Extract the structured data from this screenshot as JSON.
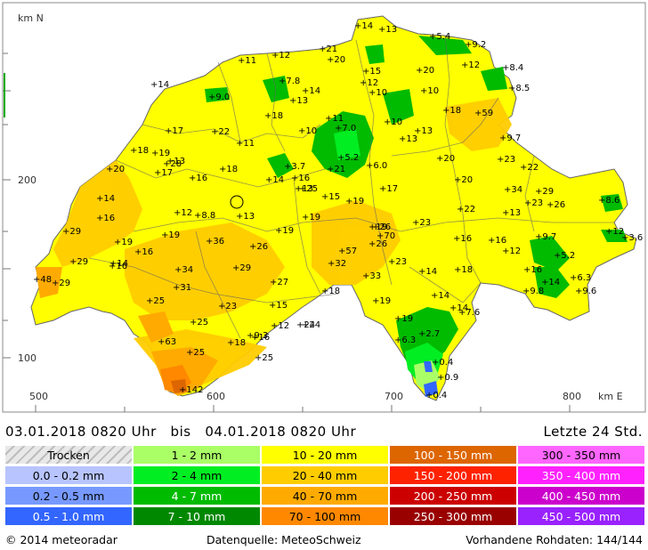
{
  "map": {
    "y_axis_title": "km N",
    "x_axis_title": "km E",
    "y_ticks": [
      "200",
      "100"
    ],
    "x_ticks": [
      "500",
      "600",
      "700",
      "800"
    ],
    "stations": [
      {
        "label": "14"
      },
      {
        "label": "13"
      },
      {
        "label": "5.4"
      },
      {
        "label": "9.2"
      },
      {
        "label": "21"
      },
      {
        "label": "20"
      },
      {
        "label": "12"
      },
      {
        "label": "11"
      },
      {
        "label": "8.4"
      },
      {
        "label": "12"
      },
      {
        "label": "15"
      },
      {
        "label": "20"
      },
      {
        "label": "7.8"
      },
      {
        "label": "14"
      },
      {
        "label": "12"
      },
      {
        "label": "14"
      },
      {
        "label": "8.5"
      },
      {
        "label": "9.0"
      },
      {
        "label": "13"
      },
      {
        "label": "10"
      },
      {
        "label": "10"
      },
      {
        "label": "18"
      },
      {
        "label": "59"
      },
      {
        "label": "18"
      },
      {
        "label": "11"
      },
      {
        "label": "10"
      },
      {
        "label": "17"
      },
      {
        "label": "22"
      },
      {
        "label": "10"
      },
      {
        "label": "7.0"
      },
      {
        "label": "13"
      },
      {
        "label": "13"
      },
      {
        "label": "9.7"
      },
      {
        "label": "18"
      },
      {
        "label": "11"
      },
      {
        "label": "19"
      },
      {
        "label": "13"
      },
      {
        "label": "28"
      },
      {
        "label": "5.2"
      },
      {
        "label": "6.0"
      },
      {
        "label": "20"
      },
      {
        "label": "22"
      },
      {
        "label": "17"
      },
      {
        "label": "20"
      },
      {
        "label": "18"
      },
      {
        "label": "3.7"
      },
      {
        "label": "21"
      },
      {
        "label": "23"
      },
      {
        "label": "14"
      },
      {
        "label": "16"
      },
      {
        "label": "16"
      },
      {
        "label": "13"
      },
      {
        "label": "25"
      },
      {
        "label": "17"
      },
      {
        "label": "20"
      },
      {
        "label": "34"
      },
      {
        "label": "29"
      },
      {
        "label": "14"
      },
      {
        "label": "15"
      },
      {
        "label": "19"
      },
      {
        "label": "23"
      },
      {
        "label": "26"
      },
      {
        "label": "8.6"
      },
      {
        "label": "12"
      },
      {
        "label": "8.8"
      },
      {
        "label": "13"
      },
      {
        "label": "19"
      },
      {
        "label": "22"
      },
      {
        "label": "13"
      },
      {
        "label": "16"
      },
      {
        "label": "19"
      },
      {
        "label": "26"
      },
      {
        "label": "23"
      },
      {
        "label": "29"
      },
      {
        "label": "19"
      },
      {
        "label": "36"
      },
      {
        "label": "26"
      },
      {
        "label": "19"
      },
      {
        "label": "70"
      },
      {
        "label": "16"
      },
      {
        "label": "16"
      },
      {
        "label": "12"
      },
      {
        "label": "3.6"
      },
      {
        "label": "19"
      },
      {
        "label": "26"
      },
      {
        "label": "9.7"
      },
      {
        "label": "29"
      },
      {
        "label": "16"
      },
      {
        "label": "57"
      },
      {
        "label": "12"
      },
      {
        "label": "14"
      },
      {
        "label": "16"
      },
      {
        "label": "34"
      },
      {
        "label": "29"
      },
      {
        "label": "32"
      },
      {
        "label": "23"
      },
      {
        "label": "14"
      },
      {
        "label": "18"
      },
      {
        "label": "16"
      },
      {
        "label": "5.2"
      },
      {
        "label": "24"
      },
      {
        "label": "48"
      },
      {
        "label": "27"
      },
      {
        "label": "33"
      },
      {
        "label": "14"
      },
      {
        "label": "6.3"
      },
      {
        "label": "29"
      },
      {
        "label": "31"
      },
      {
        "label": "18"
      },
      {
        "label": "9.8"
      },
      {
        "label": "9.6"
      },
      {
        "label": "25"
      },
      {
        "label": "19"
      },
      {
        "label": "14"
      },
      {
        "label": "23"
      },
      {
        "label": "15"
      },
      {
        "label": "7.6"
      },
      {
        "label": "25"
      },
      {
        "label": "19"
      },
      {
        "label": "9.3"
      },
      {
        "label": "12"
      },
      {
        "label": "24"
      },
      {
        "label": "14"
      },
      {
        "label": "2.7"
      },
      {
        "label": "63"
      },
      {
        "label": "6.3"
      },
      {
        "label": "18"
      },
      {
        "label": "16"
      },
      {
        "label": "25"
      },
      {
        "label": "25"
      },
      {
        "label": "0.4"
      },
      {
        "label": "0.9"
      },
      {
        "label": "142"
      },
      {
        "label": "0.4"
      }
    ]
  },
  "period": {
    "text": "03.01.2018 0820 Uhr   bis   04.01.2018 0820 Uhr",
    "right": "Letzte 24 Std."
  },
  "legend": [
    {
      "label": "Trocken",
      "color": "#c8c8c8"
    },
    {
      "label": "1 - 2 mm",
      "color": "#aaff66"
    },
    {
      "label": "10 - 20 mm",
      "color": "#ffff00"
    },
    {
      "label": "100 - 150 mm",
      "color": "#dd6600"
    },
    {
      "label": "300 - 350 mm",
      "color": "#ff66ff"
    },
    {
      "label": "0.0 - 0.2 mm",
      "color": "#b8c4ff"
    },
    {
      "label": "2 - 4 mm",
      "color": "#00ee22"
    },
    {
      "label": "20 - 40 mm",
      "color": "#ffcc00"
    },
    {
      "label": "150 - 200 mm",
      "color": "#ff2200"
    },
    {
      "label": "350 - 400 mm",
      "color": "#ff22ff"
    },
    {
      "label": "0.2 - 0.5 mm",
      "color": "#7799ff"
    },
    {
      "label": "4 - 7 mm",
      "color": "#00bb00"
    },
    {
      "label": "40 - 70 mm",
      "color": "#ffaa00"
    },
    {
      "label": "200 - 250 mm",
      "color": "#cc0000"
    },
    {
      "label": "400 - 450 mm",
      "color": "#cc00cc"
    },
    {
      "label": "0.5 - 1.0 mm",
      "color": "#3366ff"
    },
    {
      "label": "7 - 10 mm",
      "color": "#008800"
    },
    {
      "label": "70 - 100 mm",
      "color": "#ff8800"
    },
    {
      "label": "250 - 300 mm",
      "color": "#990000"
    },
    {
      "label": "450 - 500 mm",
      "color": "#9922ff"
    }
  ],
  "footer": {
    "copyright": "© 2014  meteoradar",
    "source": "Datenquelle: MeteoSchweiz",
    "raw": "Vorhandene Rohdaten: 144/144"
  }
}
